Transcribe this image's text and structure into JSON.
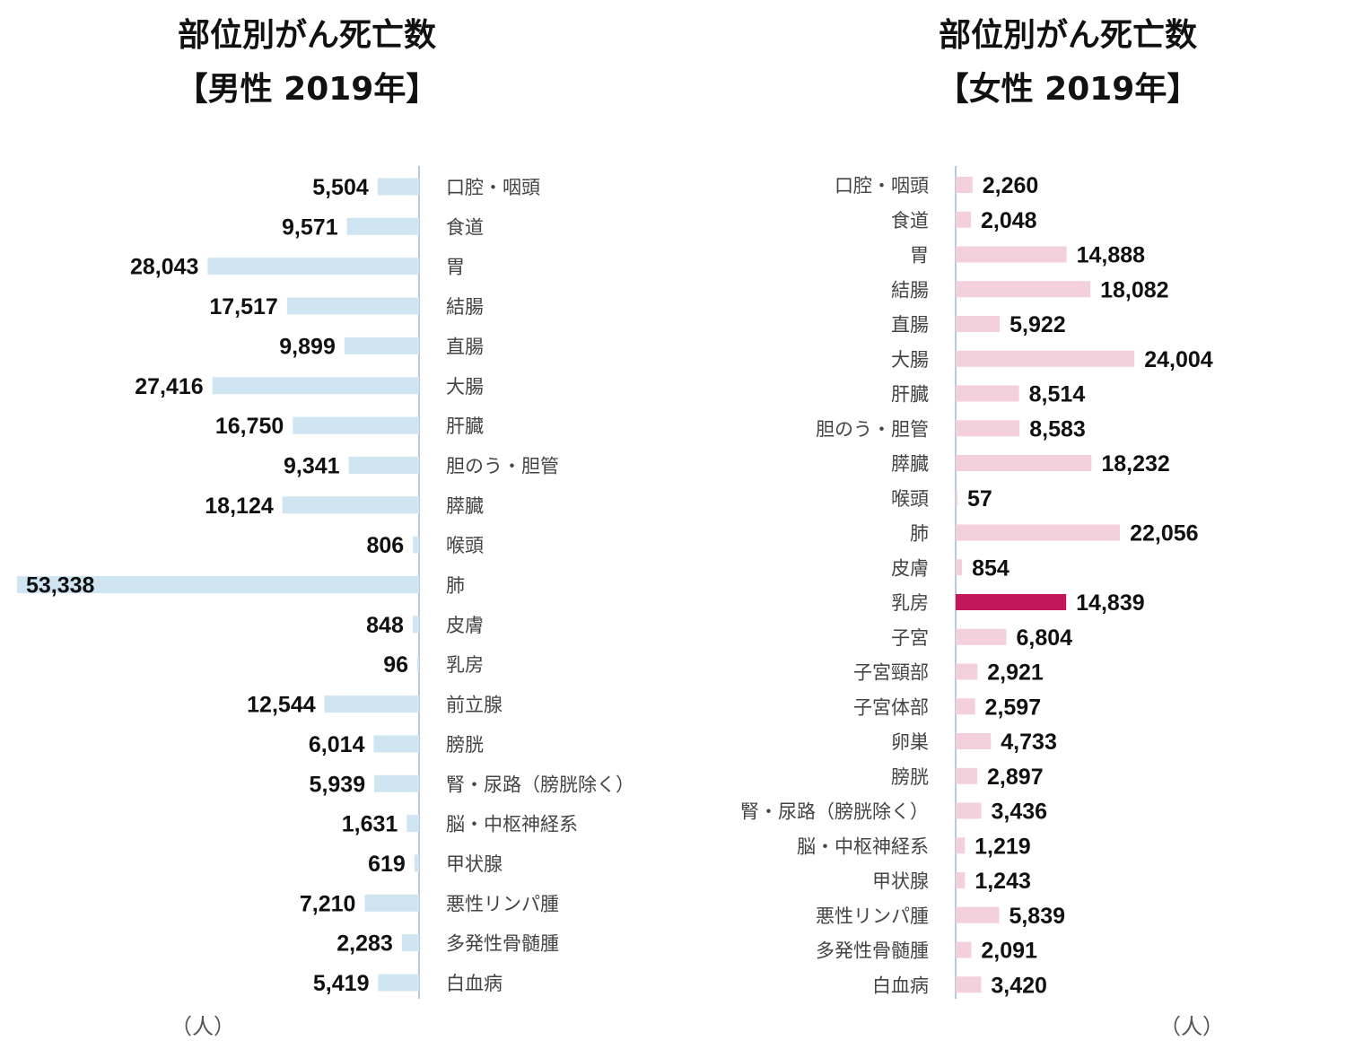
{
  "chart_data": [
    {
      "type": "bar",
      "orientation": "horizontal",
      "title": "部位別がん死亡数",
      "subtitle": "【男性 2019年】",
      "unit": "（人）",
      "bar_direction": "right-to-left",
      "colors": {
        "bar": "#cfe6f2",
        "axis": "#b8c8dd"
      },
      "categories": [
        "口腔・咽頭",
        "食道",
        "胃",
        "結腸",
        "直腸",
        "大腸",
        "肝臓",
        "胆のう・胆管",
        "膵臓",
        "喉頭",
        "肺",
        "皮膚",
        "乳房",
        "前立腺",
        "膀胱",
        "腎・尿路（膀胱除く）",
        "脳・中枢神経系",
        "甲状腺",
        "悪性リンパ腫",
        "多発性骨髄腫",
        "白血病"
      ],
      "values": [
        5504,
        9571,
        28043,
        17517,
        9899,
        27416,
        16750,
        9341,
        18124,
        806,
        53338,
        848,
        96,
        12544,
        6014,
        5939,
        1631,
        619,
        7210,
        2283,
        5419
      ],
      "labels": [
        "5,504",
        "9,571",
        "28,043",
        "17,517",
        "9,899",
        "27,416",
        "16,750",
        "9,341",
        "18,124",
        "806",
        "53,338",
        "848",
        "96",
        "12,544",
        "6,014",
        "5,939",
        "1,631",
        "619",
        "7,210",
        "2,283",
        "5,419"
      ],
      "highlight_index": -1,
      "grid": false,
      "legend": "none"
    },
    {
      "type": "bar",
      "orientation": "horizontal",
      "title": "部位別がん死亡数",
      "subtitle": "【女性 2019年】",
      "unit": "（人）",
      "bar_direction": "left-to-right",
      "colors": {
        "bar": "#f4cfdc",
        "highlight": "#c2185b",
        "axis": "#b8c8dd"
      },
      "categories": [
        "口腔・咽頭",
        "食道",
        "胃",
        "結腸",
        "直腸",
        "大腸",
        "肝臓",
        "胆のう・胆管",
        "膵臓",
        "喉頭",
        "肺",
        "皮膚",
        "乳房",
        "子宮",
        "子宮頸部",
        "子宮体部",
        "卵巣",
        "膀胱",
        "腎・尿路（膀胱除く）",
        "脳・中枢神経系",
        "甲状腺",
        "悪性リンパ腫",
        "多発性骨髄腫",
        "白血病"
      ],
      "values": [
        2260,
        2048,
        14888,
        18082,
        5922,
        24004,
        8514,
        8583,
        18232,
        57,
        22056,
        854,
        14839,
        6804,
        2921,
        2597,
        4733,
        2897,
        3436,
        1219,
        1243,
        5839,
        2091,
        3420
      ],
      "labels": [
        "2,260",
        "2,048",
        "14,888",
        "18,082",
        "5,922",
        "24,004",
        "8,514",
        "8,583",
        "18,232",
        "57",
        "22,056",
        "854",
        "14,839",
        "6,804",
        "2,921",
        "2,597",
        "4,733",
        "2,897",
        "3,436",
        "1,219",
        "1,243",
        "5,839",
        "2,091",
        "3,420"
      ],
      "highlight_index": 12,
      "grid": false,
      "legend": "none"
    }
  ]
}
